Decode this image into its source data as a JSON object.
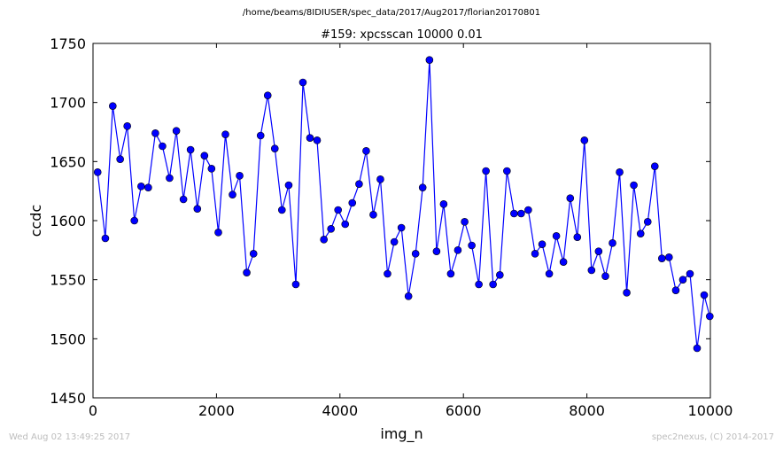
{
  "suptitle": "/home/beams/8IDIUSER/spec_data/2017/Aug2017/florian20170801",
  "footer": {
    "timestamp": "Wed Aug 02 13:49:25 2017",
    "credit": "spec2nexus, (C) 2014-2017"
  },
  "colors": {
    "series": "#0000ff",
    "marker_edge": "#000000"
  },
  "chart_data": {
    "type": "line",
    "title": "#159: xpcsscan 10000 0.01",
    "xlabel": "img_n",
    "ylabel": "ccdc",
    "xlim": [
      0,
      10000
    ],
    "ylim": [
      1450,
      1750
    ],
    "xticks": [
      0,
      2000,
      4000,
      6000,
      8000,
      10000
    ],
    "yticks": [
      1450,
      1500,
      1550,
      1600,
      1650,
      1700,
      1750
    ],
    "grid": false,
    "x": [
      75,
      200,
      320,
      440,
      555,
      670,
      780,
      895,
      1010,
      1125,
      1240,
      1350,
      1465,
      1580,
      1690,
      1805,
      1920,
      2030,
      2145,
      2260,
      2375,
      2490,
      2600,
      2715,
      2830,
      2945,
      3060,
      3170,
      3285,
      3400,
      3515,
      3630,
      3740,
      3855,
      3970,
      4085,
      4200,
      4310,
      4425,
      4540,
      4655,
      4770,
      4880,
      4995,
      5110,
      5225,
      5340,
      5450,
      5565,
      5680,
      5795,
      5910,
      6020,
      6135,
      6250,
      6365,
      6480,
      6590,
      6705,
      6820,
      6935,
      7050,
      7160,
      7275,
      7390,
      7505,
      7620,
      7730,
      7845,
      7960,
      8075,
      8190,
      8300,
      8415,
      8530,
      8645,
      8760,
      8870,
      8985,
      9100,
      9215,
      9330,
      9440,
      9555,
      9670,
      9785,
      9900,
      9990
    ],
    "y": [
      1641,
      1585,
      1697,
      1652,
      1680,
      1600,
      1629,
      1628,
      1674,
      1663,
      1636,
      1676,
      1618,
      1660,
      1610,
      1655,
      1644,
      1590,
      1673,
      1622,
      1638,
      1556,
      1572,
      1672,
      1706,
      1661,
      1609,
      1630,
      1546,
      1717,
      1670,
      1668,
      1584,
      1593,
      1609,
      1597,
      1615,
      1631,
      1659,
      1605,
      1635,
      1555,
      1582,
      1594,
      1536,
      1572,
      1628,
      1736,
      1574,
      1614,
      1555,
      1575,
      1599,
      1579,
      1546,
      1642,
      1546,
      1554,
      1642,
      1606,
      1606,
      1609,
      1572,
      1580,
      1555,
      1587,
      1565,
      1619,
      1586,
      1668,
      1558,
      1574,
      1553,
      1581,
      1641,
      1539,
      1630,
      1589,
      1599,
      1646,
      1568,
      1569,
      1541,
      1550,
      1555,
      1492,
      1537,
      1519
    ]
  }
}
